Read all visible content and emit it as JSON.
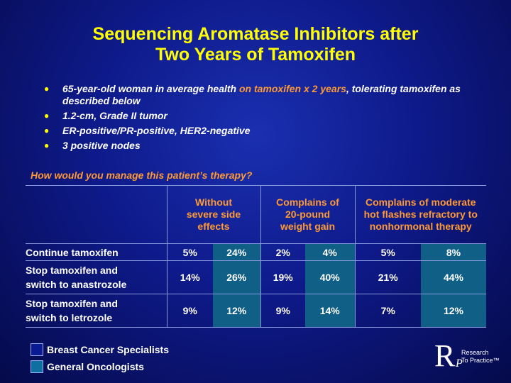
{
  "title": {
    "line1": "Sequencing Aromatase Inhibitors after",
    "line2": "Two Years of Tamoxifen"
  },
  "bullets": [
    {
      "pre": "65-year-old woman in average health ",
      "highlight": "on tamoxifen x 2 years",
      "post": ", tolerating tamoxifen as described below"
    },
    {
      "pre": "1.2-cm, Grade II tumor",
      "highlight": "",
      "post": ""
    },
    {
      "pre": "ER-positive/PR-positive, HER2-negative",
      "highlight": "",
      "post": ""
    },
    {
      "pre": "3 positive nodes",
      "highlight": "",
      "post": ""
    }
  ],
  "question": "How would you manage this patient’s therapy?",
  "table": {
    "headers": [
      "Without severe side effects",
      "Complains of 20-pound weight gain",
      "Complains of moderate hot flashes refractory to nonhormonal therapy"
    ],
    "rows": [
      {
        "label_line1": "Continue tamoxifen",
        "label_line2": "",
        "values": [
          "5%",
          "24%",
          "2%",
          "4%",
          "5%",
          "8%"
        ]
      },
      {
        "label_line1": "Stop tamoxifen and",
        "label_line2": "switch to anastrozole",
        "values": [
          "14%",
          "26%",
          "19%",
          "40%",
          "21%",
          "44%"
        ]
      },
      {
        "label_line1": "Stop tamoxifen and",
        "label_line2": "switch to letrozole",
        "values": [
          "9%",
          "12%",
          "9%",
          "14%",
          "7%",
          "12%"
        ]
      }
    ]
  },
  "legend": {
    "specialists": "Breast Cancer Specialists",
    "oncologists": "General Oncologists"
  },
  "logo": {
    "letter_r": "R",
    "letter_p": "P",
    "text1": "Research",
    "text2": "To Practice™"
  },
  "colors": {
    "title": "#ffff00",
    "highlight": "#ff9933",
    "general_oncologists_fill": "#0f5f87"
  }
}
